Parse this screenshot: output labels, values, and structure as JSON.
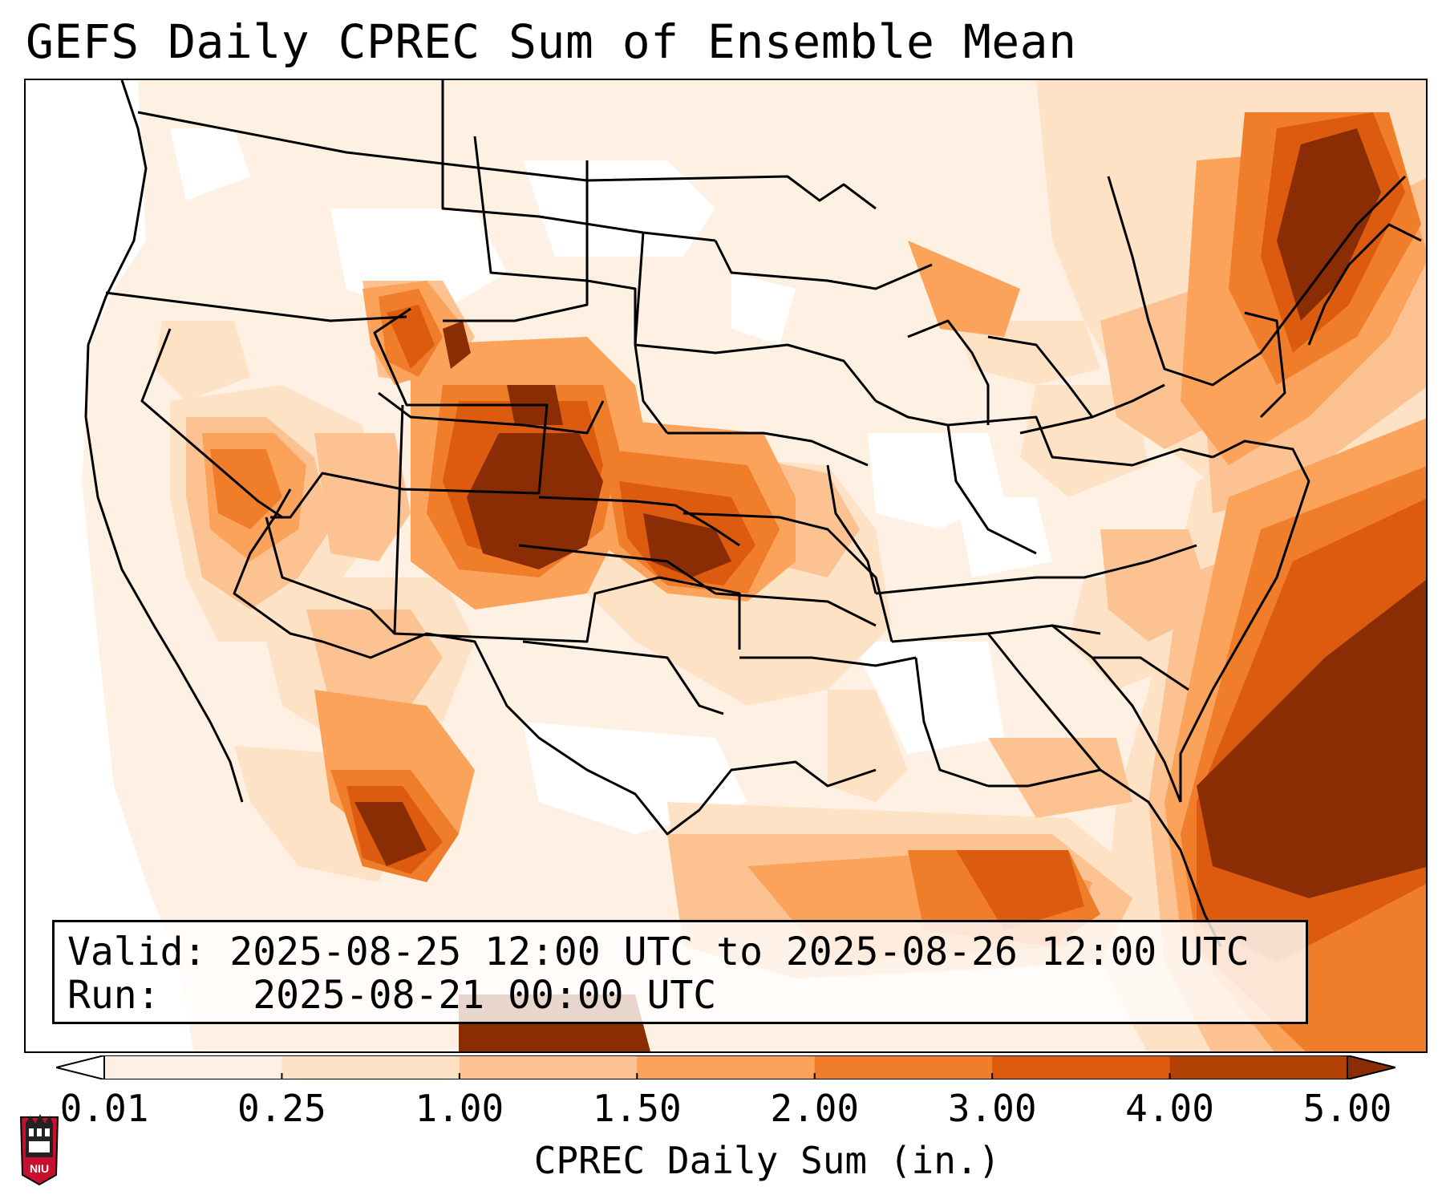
{
  "title": "GEFS Daily CPREC Sum of Ensemble Mean",
  "info": {
    "valid_label": "Valid:",
    "valid_value": "2025-08-25 12:00 UTC to 2025-08-26 12:00 UTC",
    "run_label": "Run:",
    "run_value": "2025-08-21 00:00 UTC"
  },
  "colorbar": {
    "title": "CPREC Daily Sum (in.)",
    "ticks": [
      "0.01",
      "0.25",
      "1.00",
      "1.50",
      "2.00",
      "3.00",
      "4.00",
      "5.00"
    ],
    "colors": [
      "#fef1e4",
      "#fde2c6",
      "#fdc292",
      "#fba25b",
      "#f07d2a",
      "#dc5b0f",
      "#b24203",
      "#8b2d04"
    ],
    "extend": "both"
  },
  "map": {
    "region": "CONUS",
    "palette": {
      "light": "#fef1e4",
      "pale": "#fde2c6",
      "tan": "#fdc292",
      "orange": "#fba25b",
      "deep_orange": "#f07d2a",
      "red_orange": "#dc5b0f",
      "rust": "#b24203",
      "dark": "#8b2d04"
    }
  },
  "logo": {
    "text": "NIU"
  }
}
